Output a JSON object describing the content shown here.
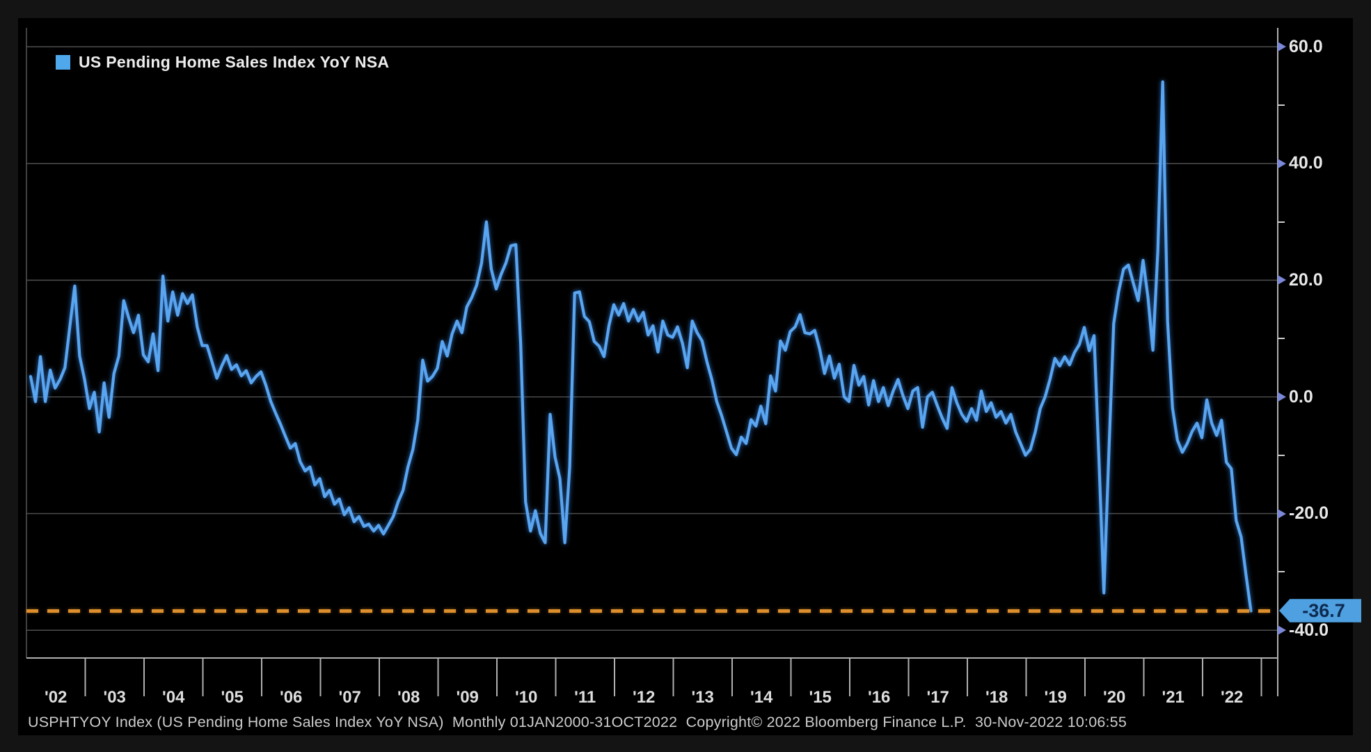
{
  "legend": {
    "label": "US Pending Home Sales Index YoY NSA",
    "swatch_color": "#4fa8ec"
  },
  "y_axis": {
    "major_labels": [
      "60.0",
      "40.0",
      "20.0",
      "0.0",
      "-20.0",
      "-40.0"
    ],
    "major_values": [
      60,
      40,
      20,
      0,
      -20,
      -40
    ],
    "minor_values": [
      50,
      30,
      10,
      -10,
      -30
    ]
  },
  "x_axis": {
    "labels": [
      "'02",
      "'03",
      "'04",
      "'05",
      "'06",
      "'07",
      "'08",
      "'09",
      "'10",
      "'11",
      "'12",
      "'13",
      "'14",
      "'15",
      "'16",
      "'17",
      "'18",
      "'19",
      "'20",
      "'21",
      "'22"
    ]
  },
  "last_point_badge": {
    "label": "-36.7",
    "value": -36.7,
    "badge_bg": "#4fa0e0",
    "badge_text_color": "#0e2a50"
  },
  "footer": {
    "text": "USPHTYOY Index (US Pending Home Sales Index YoY NSA)  Monthly 01JAN2000-31OCT2022  Copyright© 2022 Bloomberg Finance L.P.  30-Nov-2022 10:06:55"
  },
  "colors": {
    "background_frame": "#141414",
    "chart_background": "#000000",
    "line": "#5aa5f0",
    "line_glow": "#2d6fc0",
    "gridline": "#4a4a4a",
    "axis": "#b0b0b0",
    "dashed_annotation": "#dd8f2e",
    "axis_text": "#e8e8e8",
    "arrow": "#7b87d7"
  },
  "chart_data": {
    "type": "line",
    "title": "US Pending Home Sales Index YoY NSA",
    "ticker": "USPHTYOY Index",
    "frequency": "monthly",
    "x_start": "2002-01",
    "x_end": "2022-10",
    "ylim": [
      -40,
      60
    ],
    "grid": "horizontal",
    "legend_position": "top-left",
    "y_gridline_values": [
      60,
      40,
      20,
      0,
      -20,
      -40
    ],
    "annotation_line": {
      "value": -36.7,
      "style": "dashed",
      "color": "#dd8f2e",
      "label": "-36.7"
    },
    "last_value": -36.7,
    "series": [
      {
        "name": "US Pending Home Sales Index YoY NSA",
        "values": [
          3.5,
          -0.8,
          6.9,
          -0.8,
          4.6,
          1.5,
          3.0,
          5.0,
          12.0,
          19.0,
          7.0,
          3.0,
          -2.0,
          0.8,
          -6.0,
          2.4,
          -3.5,
          4.0,
          7.0,
          16.5,
          13.6,
          11.0,
          14.0,
          7.2,
          6.0,
          10.8,
          4.5,
          20.7,
          13.0,
          18.0,
          14.0,
          17.7,
          16.0,
          17.5,
          12.0,
          8.8,
          8.8,
          6.0,
          3.2,
          5.3,
          7.1,
          4.7,
          5.5,
          3.6,
          4.5,
          2.4,
          3.5,
          4.3,
          2.0,
          -0.8,
          -2.8,
          -4.7,
          -6.8,
          -8.8,
          -8.0,
          -11.1,
          -12.7,
          -12.0,
          -15.1,
          -14.0,
          -17.1,
          -16.0,
          -18.4,
          -17.5,
          -20.2,
          -19.0,
          -21.4,
          -20.5,
          -22.2,
          -21.8,
          -23.0,
          -22.0,
          -23.5,
          -22.0,
          -20.5,
          -18.0,
          -16.0,
          -12.0,
          -9.0,
          -4.0,
          6.3,
          2.7,
          3.5,
          4.9,
          9.5,
          7.0,
          10.8,
          13.0,
          11.0,
          15.4,
          17.0,
          19.1,
          22.9,
          30.0,
          21.9,
          18.5,
          21.0,
          23.0,
          25.9,
          26.1,
          9.0,
          -18.0,
          -23.0,
          -19.5,
          -23.4,
          -25.0,
          -3.0,
          -10.3,
          -14.0,
          -25.0,
          -12.0,
          17.8,
          18.0,
          13.8,
          12.9,
          9.5,
          8.7,
          6.9,
          12.2,
          15.8,
          14.0,
          16.0,
          13.0,
          15.0,
          13.0,
          14.5,
          10.6,
          12.2,
          7.7,
          13.0,
          10.6,
          10.2,
          12.0,
          9.2,
          5.0,
          13.0,
          11.0,
          9.6,
          6.0,
          3.0,
          -0.8,
          -3.2,
          -6.0,
          -8.8,
          -9.9,
          -6.9,
          -8.0,
          -3.9,
          -5.0,
          -1.6,
          -4.6,
          3.6,
          1.0,
          9.6,
          8.0,
          11.2,
          12.0,
          14.1,
          11.0,
          10.8,
          11.4,
          8.2,
          4.0,
          7.0,
          3.2,
          5.6,
          0.0,
          -0.8,
          5.4,
          2.0,
          3.5,
          -1.4,
          2.8,
          -0.8,
          1.6,
          -1.5,
          1.0,
          3.0,
          0.2,
          -2.0,
          1.0,
          1.6,
          -5.2,
          0.0,
          0.8,
          -1.5,
          -3.6,
          -5.4,
          1.6,
          -1.0,
          -3.0,
          -4.2,
          -2.0,
          -4.0,
          1.0,
          -2.5,
          -1.0,
          -3.5,
          -2.5,
          -4.5,
          -3.0,
          -6.0,
          -8.0,
          -10.0,
          -9.0,
          -6.0,
          -2.0,
          0.0,
          3.0,
          6.6,
          5.3,
          6.9,
          5.5,
          7.6,
          9.0,
          11.9,
          7.9,
          10.5,
          -11.0,
          -33.6,
          -10.0,
          12.6,
          18.0,
          21.9,
          22.6,
          19.5,
          16.5,
          23.4,
          17.0,
          8.0,
          25.0,
          54.0,
          13.0,
          -1.9,
          -7.4,
          -9.5,
          -8.0,
          -5.9,
          -4.5,
          -7.0,
          -0.5,
          -4.5,
          -6.6,
          -4.0,
          -11.2,
          -12.3,
          -21.2,
          -24.0,
          -30.5,
          -36.7
        ]
      }
    ]
  }
}
